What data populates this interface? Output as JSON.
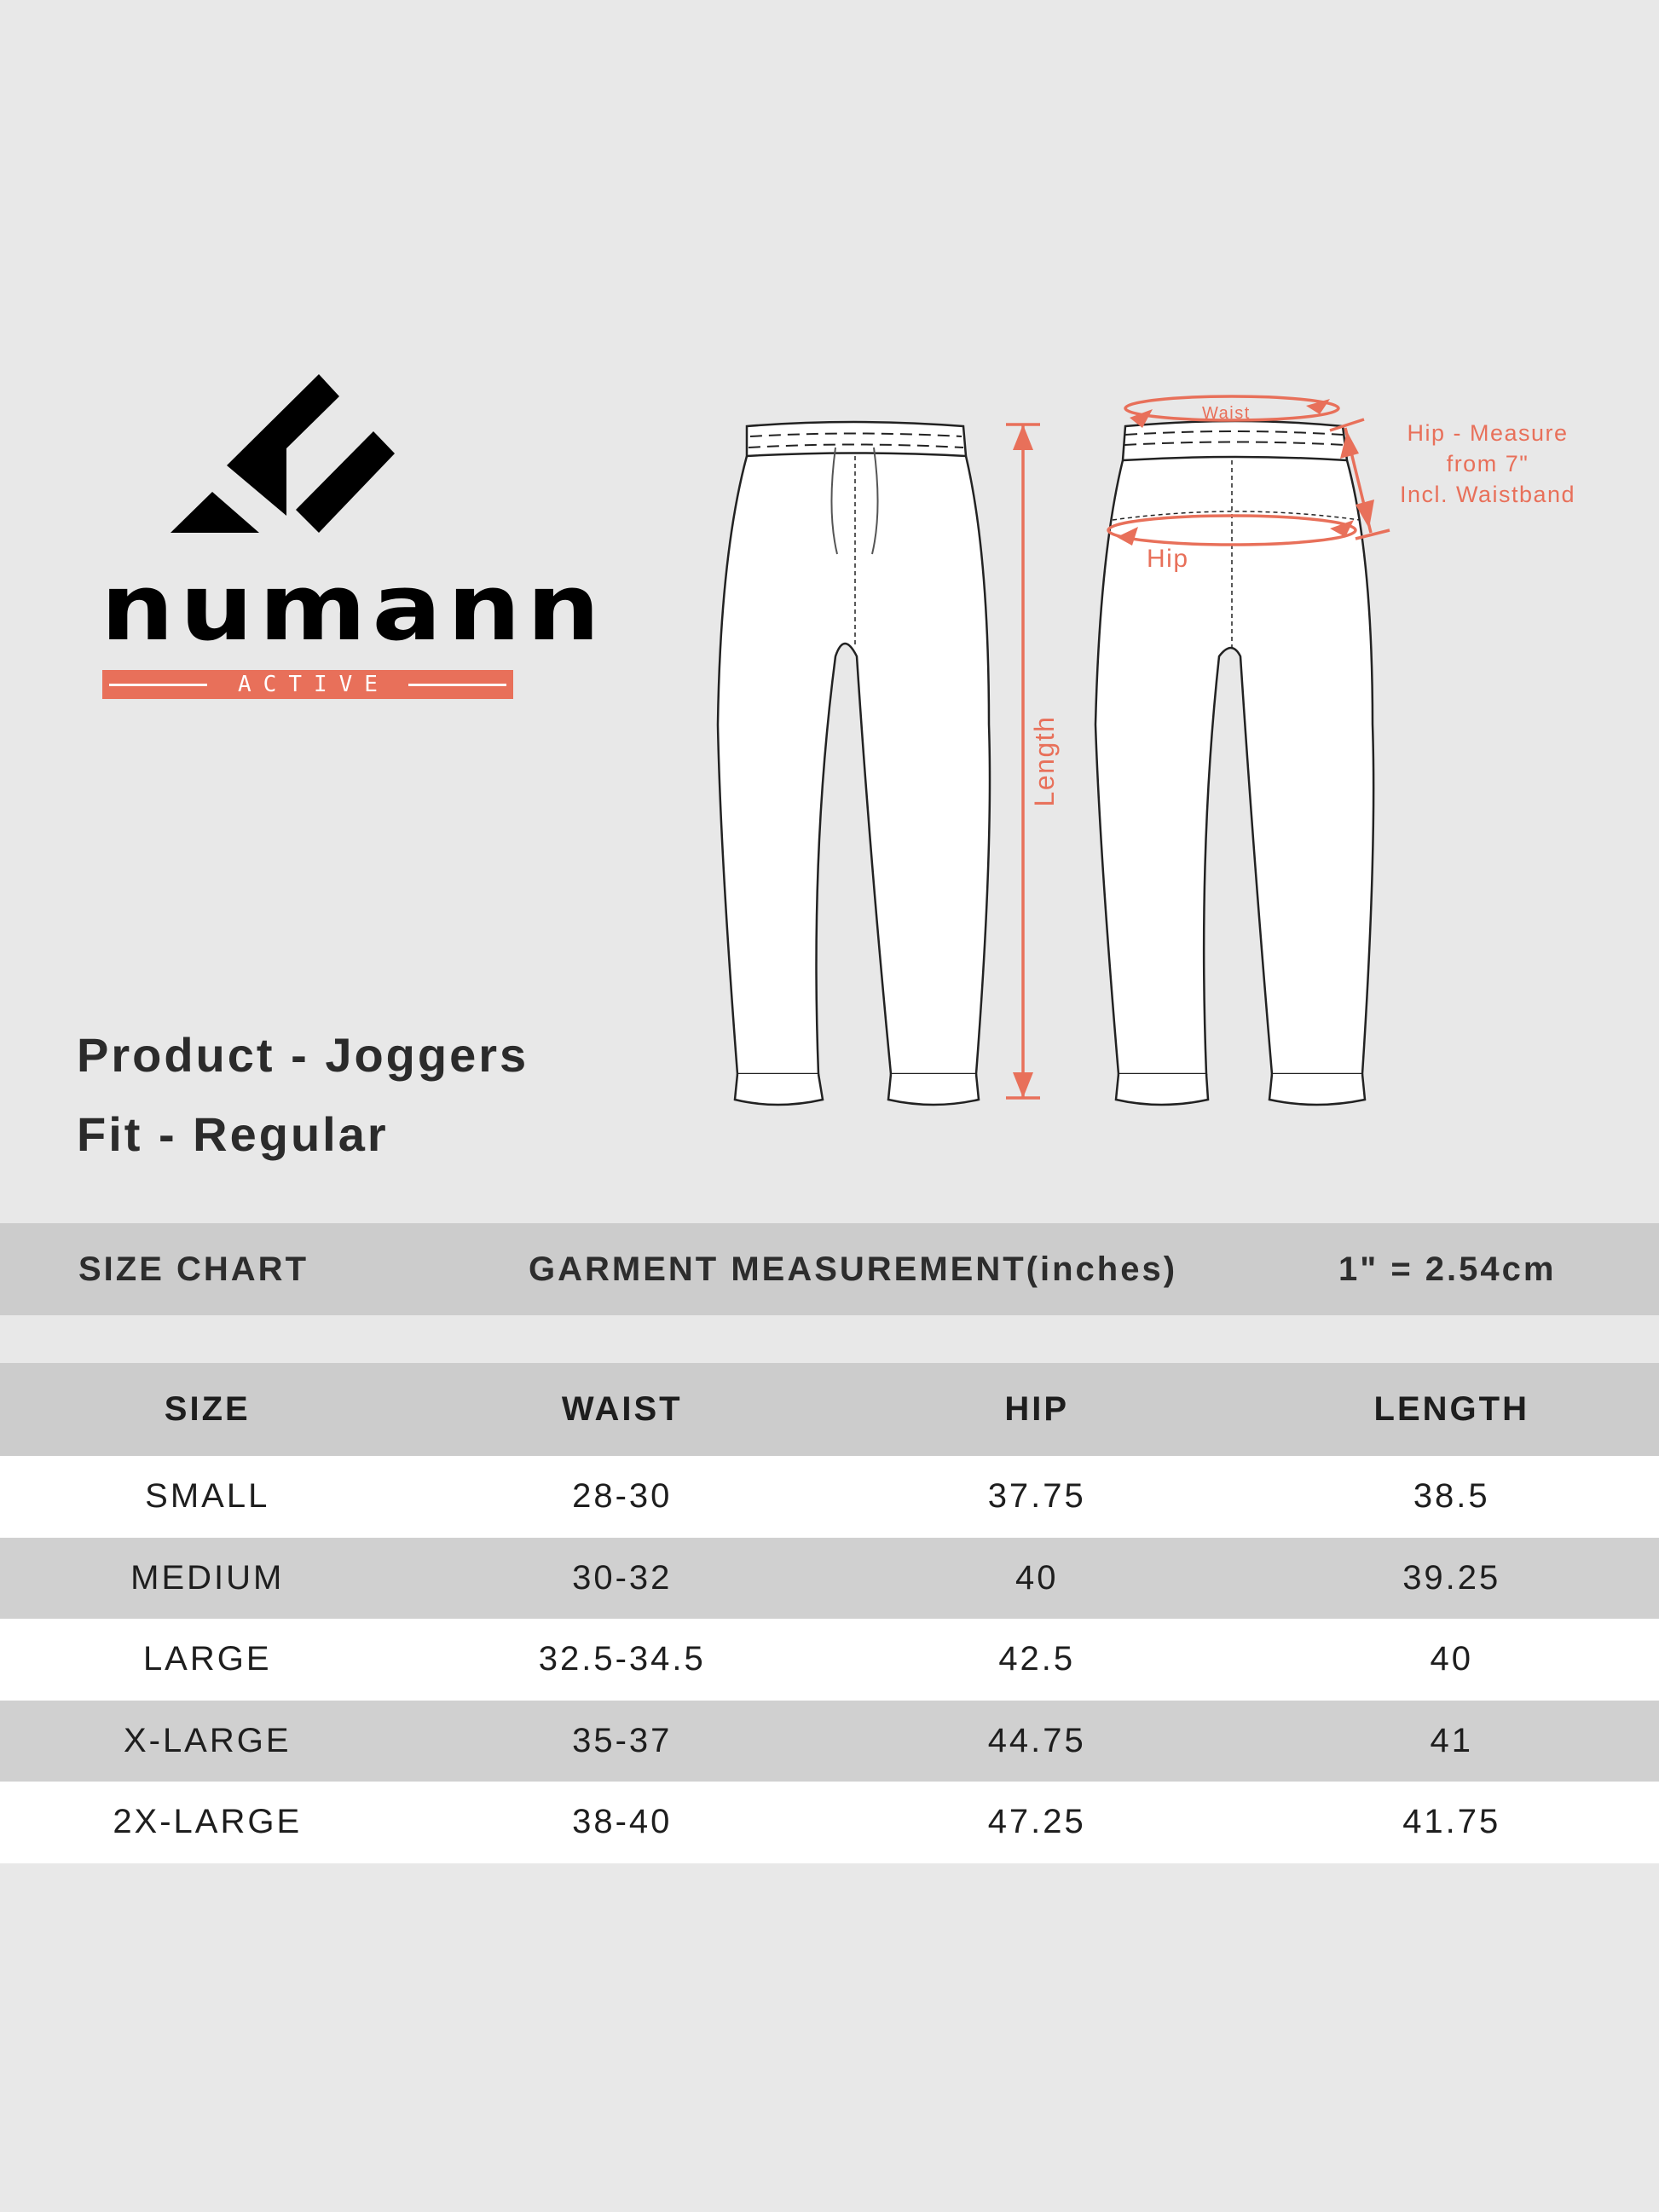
{
  "brand": {
    "name": "numann",
    "tagline": "ACTIVE"
  },
  "product": {
    "line1": "Product - Joggers",
    "line2": "Fit - Regular"
  },
  "diagram": {
    "waist_label": "Waist",
    "hip_label": "Hip",
    "hip_note": [
      "Hip - Measure",
      "from 7\"",
      "Incl. Waistband"
    ],
    "length_label": "Length"
  },
  "size_chart_bar": {
    "left": "SIZE CHART",
    "center": "GARMENT MEASUREMENT(inches)",
    "right": "1\" = 2.54cm"
  },
  "table": {
    "headers": [
      "SIZE",
      "WAIST",
      "HIP",
      "LENGTH"
    ],
    "rows": [
      [
        "SMALL",
        "28-30",
        "37.75",
        "38.5"
      ],
      [
        "MEDIUM",
        "30-32",
        "40",
        "39.25"
      ],
      [
        "LARGE",
        "32.5-34.5",
        "42.5",
        "40"
      ],
      [
        "X-LARGE",
        "35-37",
        "44.75",
        "41"
      ],
      [
        "2X-LARGE",
        "38-40",
        "47.25",
        "41.75"
      ]
    ]
  },
  "colors": {
    "background": "#e8e8e8",
    "accent": "#e8705a",
    "band": "#cccccc",
    "row_alt": "#d0d0d0"
  }
}
